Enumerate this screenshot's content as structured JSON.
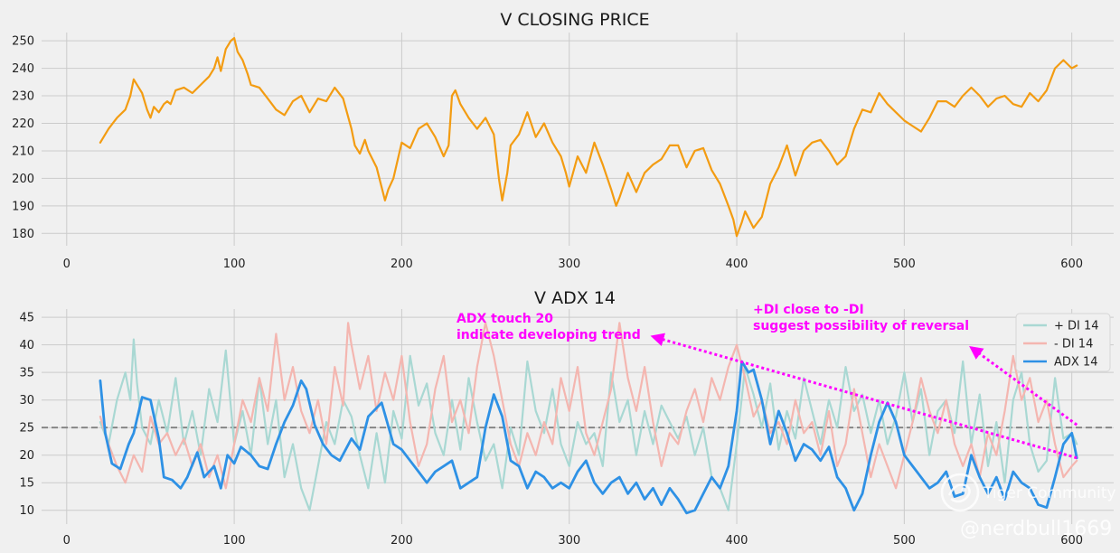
{
  "chart_data": [
    {
      "type": "line",
      "title": "V CLOSING PRICE",
      "xlabel": "",
      "ylabel": "",
      "xlim": [
        -15,
        625
      ],
      "ylim": [
        175.5,
        253
      ],
      "xticks": [
        0,
        100,
        200,
        300,
        400,
        500,
        600
      ],
      "yticks": [
        180,
        190,
        200,
        210,
        220,
        230,
        240,
        250
      ],
      "grid": true,
      "series": [
        {
          "name": "V closing price",
          "color": "#f39c12",
          "x": [
            20,
            25,
            30,
            35,
            38,
            40,
            43,
            45,
            48,
            50,
            52,
            55,
            58,
            60,
            62,
            65,
            70,
            75,
            80,
            85,
            88,
            90,
            92,
            95,
            98,
            100,
            102,
            105,
            108,
            110,
            115,
            120,
            125,
            130,
            135,
            140,
            145,
            150,
            155,
            160,
            165,
            170,
            172,
            175,
            178,
            180,
            185,
            190,
            192,
            195,
            200,
            205,
            210,
            215,
            220,
            225,
            228,
            230,
            232,
            235,
            240,
            245,
            250,
            255,
            258,
            260,
            263,
            265,
            270,
            275,
            280,
            285,
            290,
            295,
            298,
            300,
            305,
            310,
            315,
            320,
            325,
            328,
            330,
            335,
            340,
            345,
            350,
            355,
            360,
            365,
            370,
            375,
            380,
            385,
            390,
            395,
            398,
            400,
            403,
            405,
            410,
            415,
            420,
            425,
            430,
            435,
            440,
            445,
            450,
            455,
            460,
            465,
            470,
            475,
            480,
            485,
            490,
            495,
            500,
            505,
            510,
            515,
            520,
            525,
            530,
            535,
            540,
            545,
            550,
            555,
            560,
            565,
            570,
            575,
            580,
            585,
            590,
            595,
            600,
            603
          ],
          "values": [
            213,
            218,
            222,
            225,
            230,
            236,
            233,
            231,
            225,
            222,
            226,
            224,
            227,
            228,
            227,
            232,
            233,
            231,
            234,
            237,
            240,
            244,
            239,
            247,
            250,
            251,
            246,
            243,
            238,
            234,
            233,
            229,
            225,
            223,
            228,
            230,
            224,
            229,
            228,
            233,
            229,
            218,
            212,
            209,
            214,
            210,
            204,
            192,
            196,
            200,
            213,
            211,
            218,
            220,
            215,
            208,
            212,
            230,
            232,
            227,
            222,
            218,
            222,
            216,
            200,
            192,
            202,
            212,
            216,
            224,
            215,
            220,
            213,
            208,
            202,
            197,
            208,
            202,
            213,
            205,
            196,
            190,
            193,
            202,
            195,
            202,
            205,
            207,
            212,
            212,
            204,
            210,
            211,
            203,
            198,
            190,
            185,
            179,
            184,
            188,
            182,
            186,
            198,
            204,
            212,
            201,
            210,
            213,
            214,
            210,
            205,
            208,
            218,
            225,
            224,
            231,
            227,
            224,
            221,
            219,
            217,
            222,
            228,
            228,
            226,
            230,
            233,
            230,
            226,
            229,
            230,
            227,
            226,
            231,
            228,
            232,
            240,
            243,
            240,
            241
          ]
        }
      ]
    },
    {
      "type": "line",
      "title": "V ADX 14",
      "xlabel": "",
      "ylabel": "",
      "xlim": [
        -15,
        625
      ],
      "ylim": [
        7.5,
        46.5
      ],
      "xticks": [
        0,
        100,
        200,
        300,
        400,
        500,
        600
      ],
      "yticks": [
        10,
        15,
        20,
        25,
        30,
        35,
        40,
        45
      ],
      "grid": true,
      "legend_position": "top-right",
      "reference_line": {
        "y": 25,
        "style": "dashed",
        "color": "#808080"
      },
      "series": [
        {
          "name": "+ DI 14",
          "color": "#a9d8d3",
          "x": [
            20,
            25,
            30,
            35,
            38,
            40,
            42,
            45,
            50,
            55,
            60,
            65,
            70,
            75,
            80,
            85,
            90,
            95,
            100,
            105,
            110,
            115,
            120,
            125,
            130,
            135,
            140,
            145,
            150,
            155,
            160,
            165,
            170,
            175,
            180,
            185,
            190,
            195,
            200,
            205,
            210,
            215,
            220,
            225,
            230,
            235,
            240,
            245,
            250,
            255,
            260,
            265,
            270,
            275,
            280,
            285,
            290,
            295,
            300,
            305,
            310,
            315,
            320,
            325,
            330,
            335,
            340,
            345,
            350,
            355,
            360,
            365,
            370,
            375,
            380,
            385,
            390,
            395,
            400,
            405,
            410,
            415,
            420,
            425,
            430,
            435,
            440,
            445,
            450,
            455,
            460,
            465,
            470,
            475,
            480,
            485,
            490,
            495,
            500,
            505,
            510,
            515,
            520,
            525,
            530,
            535,
            540,
            545,
            550,
            555,
            560,
            565,
            570,
            575,
            580,
            585,
            590,
            595,
            600,
            603
          ],
          "values": [
            26,
            22,
            30,
            35,
            30,
            41,
            33,
            25,
            22,
            30,
            24,
            34,
            22,
            28,
            20,
            32,
            26,
            39,
            22,
            28,
            20,
            34,
            22,
            30,
            16,
            22,
            14,
            10,
            18,
            26,
            22,
            30,
            27,
            20,
            14,
            24,
            15,
            28,
            23,
            38,
            29,
            33,
            24,
            20,
            30,
            21,
            34,
            26,
            19,
            22,
            14,
            25,
            20,
            37,
            28,
            24,
            32,
            22,
            18,
            26,
            22,
            24,
            18,
            35,
            26,
            30,
            20,
            28,
            22,
            29,
            26,
            23,
            27,
            20,
            25,
            16,
            14,
            10,
            22,
            36,
            31,
            25,
            33,
            21,
            28,
            23,
            34,
            28,
            22,
            30,
            25,
            36,
            28,
            31,
            24,
            30,
            22,
            27,
            35,
            26,
            32,
            20,
            28,
            30,
            24,
            37,
            22,
            31,
            18,
            26,
            15,
            30,
            35,
            22,
            17,
            19,
            34,
            23,
            24,
            22
          ]
        },
        {
          "name": "- DI 14",
          "color": "#f4b6b0",
          "x": [
            20,
            25,
            30,
            35,
            40,
            45,
            50,
            55,
            60,
            65,
            70,
            75,
            80,
            85,
            90,
            95,
            100,
            105,
            110,
            115,
            120,
            125,
            130,
            135,
            140,
            145,
            150,
            155,
            160,
            165,
            168,
            170,
            175,
            180,
            185,
            190,
            195,
            200,
            205,
            210,
            215,
            220,
            225,
            230,
            235,
            240,
            245,
            250,
            255,
            260,
            265,
            270,
            275,
            280,
            285,
            290,
            295,
            300,
            305,
            310,
            315,
            320,
            325,
            330,
            335,
            340,
            345,
            350,
            355,
            360,
            365,
            370,
            375,
            380,
            385,
            390,
            395,
            400,
            405,
            410,
            415,
            420,
            425,
            430,
            435,
            440,
            445,
            450,
            455,
            460,
            465,
            470,
            475,
            480,
            485,
            490,
            495,
            500,
            505,
            510,
            515,
            520,
            525,
            530,
            535,
            540,
            545,
            550,
            555,
            560,
            565,
            570,
            575,
            580,
            585,
            590,
            595,
            600,
            603
          ],
          "values": [
            27,
            22,
            18,
            15,
            20,
            17,
            27,
            22,
            24,
            20,
            23,
            18,
            22,
            16,
            20,
            14,
            22,
            30,
            26,
            34,
            28,
            42,
            30,
            36,
            28,
            24,
            30,
            22,
            36,
            29,
            44,
            40,
            32,
            38,
            28,
            35,
            30,
            38,
            26,
            18,
            22,
            32,
            38,
            26,
            30,
            24,
            36,
            44,
            38,
            30,
            22,
            18,
            24,
            20,
            26,
            22,
            34,
            28,
            36,
            24,
            20,
            26,
            32,
            44,
            34,
            28,
            36,
            26,
            18,
            24,
            22,
            28,
            32,
            26,
            34,
            30,
            36,
            40,
            34,
            27,
            30,
            24,
            26,
            22,
            30,
            24,
            26,
            20,
            28,
            18,
            22,
            32,
            24,
            16,
            22,
            18,
            14,
            20,
            26,
            34,
            28,
            24,
            30,
            22,
            18,
            22,
            16,
            24,
            20,
            28,
            38,
            30,
            34,
            26,
            30,
            22,
            16,
            18,
            19
          ]
        },
        {
          "name": "ADX 14",
          "color": "#2e91e5",
          "x": [
            20,
            23,
            27,
            32,
            37,
            40,
            45,
            50,
            55,
            58,
            63,
            68,
            72,
            78,
            82,
            88,
            92,
            96,
            100,
            104,
            110,
            115,
            120,
            125,
            130,
            135,
            140,
            143,
            148,
            153,
            158,
            163,
            170,
            175,
            180,
            188,
            195,
            200,
            205,
            210,
            215,
            220,
            225,
            230,
            235,
            240,
            245,
            250,
            255,
            260,
            265,
            270,
            275,
            280,
            285,
            290,
            295,
            300,
            305,
            310,
            315,
            320,
            325,
            330,
            335,
            340,
            345,
            350,
            355,
            360,
            365,
            370,
            375,
            380,
            385,
            390,
            395,
            400,
            403,
            407,
            410,
            415,
            420,
            425,
            430,
            435,
            440,
            445,
            450,
            455,
            460,
            465,
            470,
            475,
            480,
            485,
            490,
            495,
            500,
            505,
            510,
            515,
            520,
            525,
            530,
            535,
            540,
            545,
            550,
            555,
            560,
            565,
            570,
            575,
            580,
            585,
            590,
            595,
            600,
            603
          ],
          "values": [
            33.5,
            24,
            18.5,
            17.5,
            22,
            24,
            30.5,
            30,
            23,
            16,
            15.5,
            14,
            16,
            20.5,
            16,
            18,
            14,
            20,
            18.5,
            21.5,
            20,
            18,
            17.5,
            22,
            26,
            29,
            33.5,
            32,
            25.5,
            22,
            20,
            19,
            23,
            21,
            27,
            29.5,
            22,
            21,
            19,
            17,
            15,
            17,
            18,
            19,
            14,
            15,
            16,
            25,
            31,
            27,
            19,
            18,
            14,
            17,
            16,
            14,
            15,
            14,
            17,
            19,
            15,
            13,
            15,
            16,
            13,
            15,
            12,
            14,
            11,
            14,
            12,
            9.5,
            10,
            13,
            16,
            14,
            18,
            28,
            37,
            35,
            35.5,
            30,
            22,
            28,
            24,
            19,
            22,
            21,
            19,
            21.5,
            16,
            14,
            10,
            13,
            20,
            26,
            29.5,
            26,
            20,
            18,
            16,
            14,
            15,
            17,
            12.5,
            13,
            20,
            16,
            13,
            16,
            12,
            17,
            15,
            14,
            11,
            10.5,
            16,
            22,
            24,
            19.5
          ]
        }
      ]
    }
  ],
  "annotations": [
    {
      "line1": "ADX touch 20",
      "line2": "indicate developing trend"
    },
    {
      "line1": "+DI close to -DI",
      "line2": "suggest possibility of reversal"
    }
  ],
  "annotation_arrows": [
    {
      "from": [
        603,
        19.5
      ],
      "to": [
        350,
        41.5
      ]
    },
    {
      "from": [
        603,
        25.5
      ],
      "to": [
        540,
        39.5
      ]
    }
  ],
  "annotation_color": "#ff00ff",
  "watermark": {
    "brand": "Tiger Community",
    "handle": "@nerdbull1669"
  }
}
